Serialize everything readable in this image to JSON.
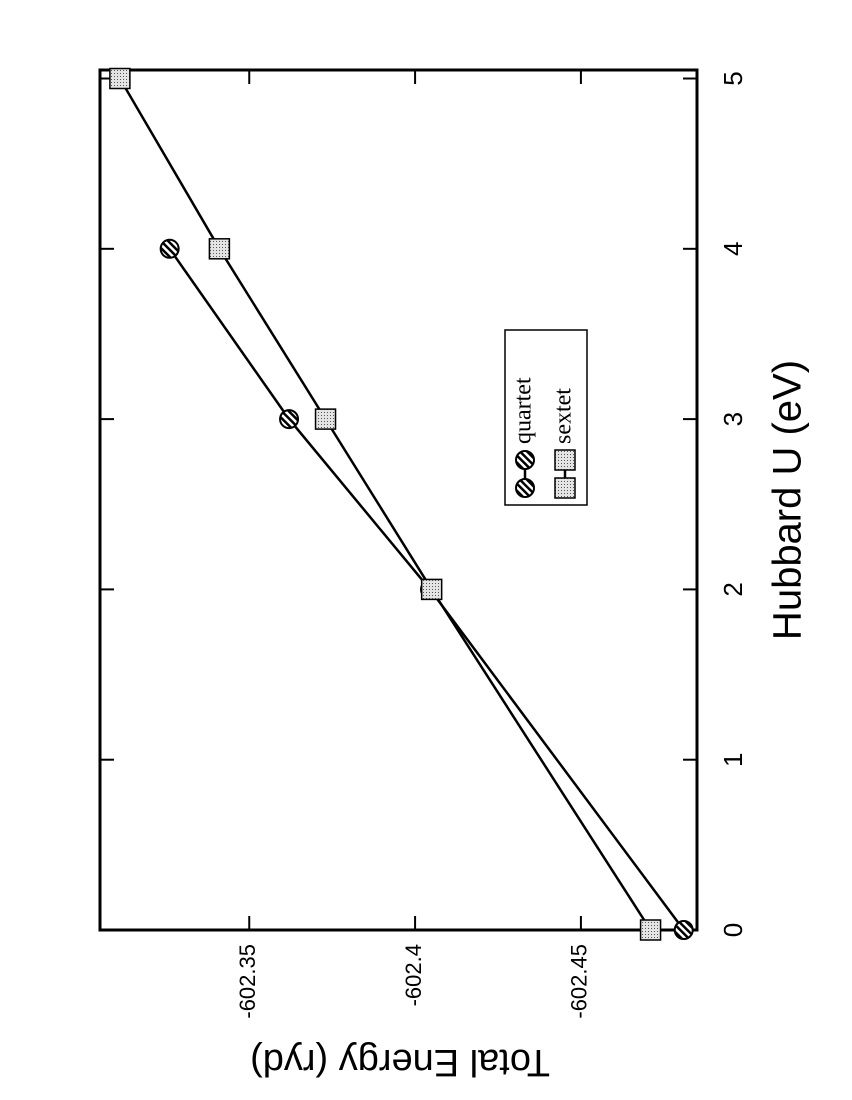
{
  "chart_data": {
    "type": "line",
    "x_label": "Hubbard U (eV)",
    "y_label": "Total Energy (ryd)",
    "x": [
      0,
      2,
      3,
      4,
      5
    ],
    "series": [
      {
        "name": "quartet",
        "color": "#000000",
        "marker": "hatched-circle",
        "values": [
          -602.481,
          -602.4045,
          -602.362,
          -602.326,
          null
        ]
      },
      {
        "name": "sextet",
        "color": "#000000",
        "marker": "dotted-square",
        "values": [
          -602.471,
          -602.405,
          -602.373,
          -602.341,
          -602.311
        ]
      }
    ],
    "xlim": [
      0,
      5.05
    ],
    "xticks": [
      0,
      1,
      2,
      3,
      4,
      5
    ],
    "ylim": [
      -602.485,
      -602.305
    ],
    "yticks": [
      -602.45,
      -602.4,
      -602.35
    ],
    "grid": false,
    "legend": "center"
  }
}
